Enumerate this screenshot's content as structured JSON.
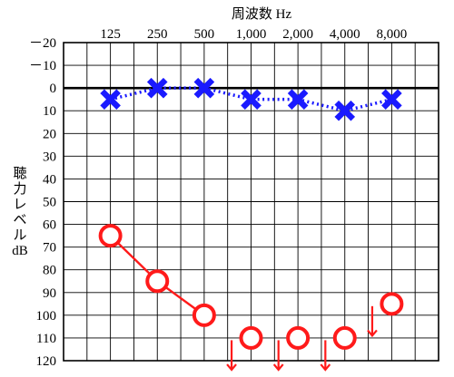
{
  "chart_data": {
    "type": "scatter",
    "title": "周波数 Hz",
    "xlabel": "周波数 Hz",
    "ylabel_chars": [
      "聴",
      "力",
      "レ",
      "ベ",
      "ル"
    ],
    "ylabel_unit": "dB",
    "categories": [
      "125",
      "250",
      "500",
      "1,000",
      "2,000",
      "4,000",
      "8,000"
    ],
    "x_values_hz": [
      125,
      250,
      500,
      1000,
      2000,
      4000,
      8000
    ],
    "y_ticks": [
      "－20",
      "－10",
      "0",
      "10",
      "20",
      "30",
      "40",
      "50",
      "60",
      "70",
      "80",
      "90",
      "100",
      "110",
      "120"
    ],
    "ylim": [
      -20,
      120
    ],
    "y_inverted": true,
    "grid": true,
    "series": [
      {
        "marker": "x",
        "line": "dotted",
        "color": "#1a1aff",
        "points": [
          {
            "x": 125,
            "y": 5
          },
          {
            "x": 250,
            "y": 0
          },
          {
            "x": 500,
            "y": 0
          },
          {
            "x": 1000,
            "y": 5
          },
          {
            "x": 2000,
            "y": 5
          },
          {
            "x": 4000,
            "y": 10
          },
          {
            "x": 8000,
            "y": 5
          }
        ]
      },
      {
        "marker": "o",
        "line": "solid",
        "color": "#ff1a1a",
        "connected_points": [
          {
            "x": 125,
            "y": 65
          },
          {
            "x": 250,
            "y": 85
          },
          {
            "x": 500,
            "y": 100
          }
        ],
        "unconnected_points": [
          {
            "x": 1000,
            "y": 110
          },
          {
            "x": 2000,
            "y": 110
          },
          {
            "x": 4000,
            "y": 110
          },
          {
            "x": 8000,
            "y": 95
          }
        ],
        "scale_out_arrows": [
          {
            "x": 750,
            "y_from": 111,
            "y_to": 124
          },
          {
            "x": 1500,
            "y_from": 111,
            "y_to": 124
          },
          {
            "x": 3000,
            "y_from": 111,
            "y_to": 124
          },
          {
            "x": 6000,
            "y_from": 96,
            "y_to": 109
          }
        ]
      }
    ]
  }
}
